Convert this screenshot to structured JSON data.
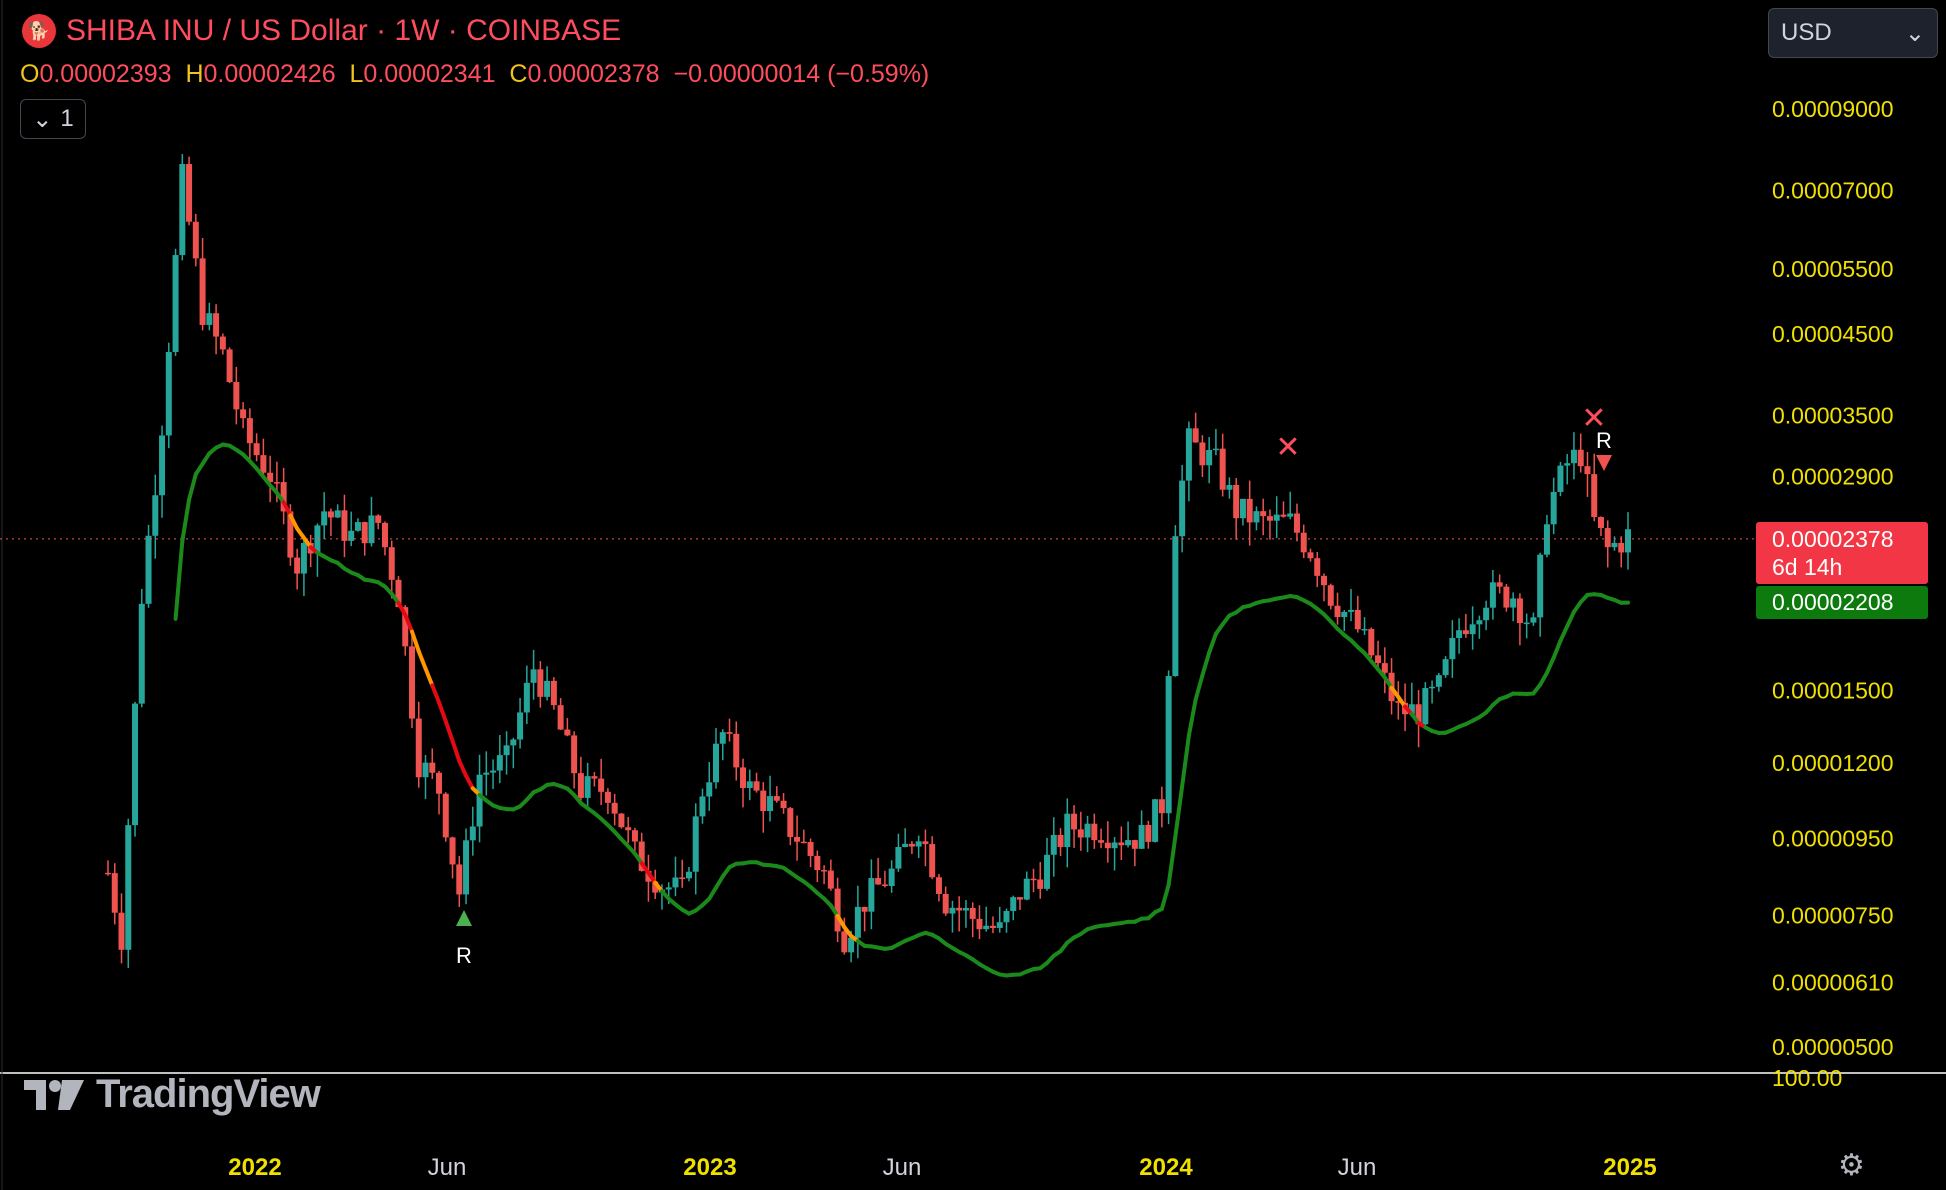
{
  "header": {
    "logo_icon": "shiba-coin-icon",
    "title": "SHIBA INU / US Dollar · 1W · COINBASE",
    "ohlc": {
      "o_key": "O",
      "o": "0.00002393",
      "h_key": "H",
      "h": "0.00002426",
      "l_key": "L",
      "l": "0.00002341",
      "c_key": "C",
      "c": "0.00002378",
      "change": "−0.00000014 (−0.59%)"
    },
    "collapse_label": "1",
    "currency_select": "USD"
  },
  "chart_data": {
    "type": "candlestick",
    "scale": "log",
    "price_axis": {
      "ticks": [
        "0.00009000",
        "0.00007000",
        "0.00005500",
        "0.00004500",
        "0.00003500",
        "0.00002900",
        "0.00001500",
        "0.00001200",
        "0.00000950",
        "0.00000750",
        "0.00000610",
        "0.00000500"
      ],
      "extra_tick": "100.00"
    },
    "time_axis": {
      "ticks": [
        "2022",
        "Jun",
        "2023",
        "Jun",
        "2024",
        "Jun",
        "2025"
      ]
    },
    "last_price": "0.00002378",
    "countdown": "6d 14h",
    "indicator_value": "0.00002208",
    "markers": [
      "R",
      "R"
    ],
    "colors": {
      "up": "#26a69a",
      "down": "#ef5350",
      "trail_green": "#1b8a1b",
      "trail_red": "#e50914",
      "trail_orange": "#ff9800",
      "axis_text": "#f0e000",
      "price_line": "#ef5350"
    }
  },
  "footer": {
    "brand": "TradingView",
    "settings_icon": "settings-icon"
  }
}
